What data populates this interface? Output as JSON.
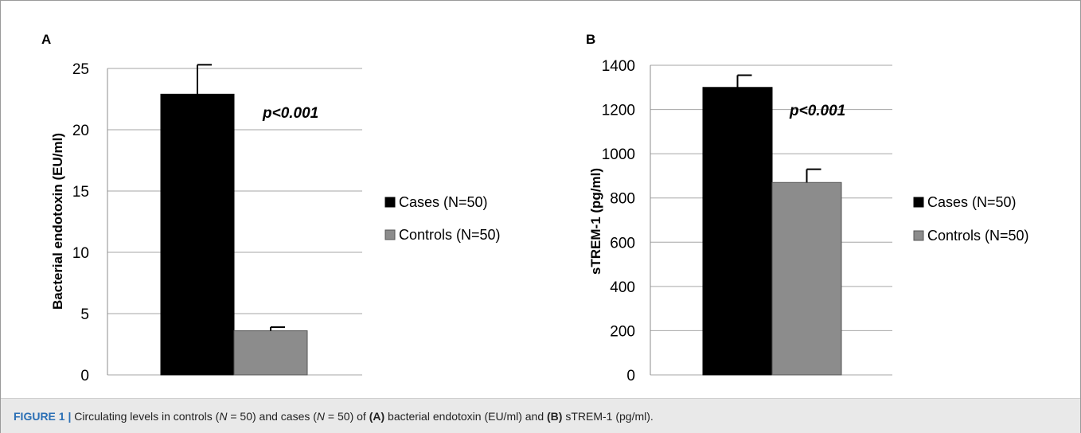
{
  "chart_data": [
    {
      "type": "bar",
      "panel_label": "A",
      "ylabel": "Bacterial endotoxin (EU/ml)",
      "ylim": [
        0,
        25
      ],
      "yticks": [
        0,
        5,
        10,
        15,
        20,
        25
      ],
      "annotation": "p<0.001",
      "grid": true,
      "legend_position": "right",
      "series": [
        {
          "name": "Cases (N=50)",
          "value": 22.9,
          "error": 2.4,
          "color": "#000000"
        },
        {
          "name": "Controls (N=50)",
          "value": 3.6,
          "error": 0.3,
          "color": "#8c8c8c"
        }
      ]
    },
    {
      "type": "bar",
      "panel_label": "B",
      "ylabel": "sTREM-1 (pg/ml)",
      "ylim": [
        0,
        1400
      ],
      "yticks": [
        0,
        200,
        400,
        600,
        800,
        1000,
        1200,
        1400
      ],
      "annotation": "p<0.001",
      "grid": true,
      "legend_position": "right",
      "series": [
        {
          "name": "Cases (N=50)",
          "value": 1300,
          "error": 55,
          "color": "#000000"
        },
        {
          "name": "Controls (N=50)",
          "value": 870,
          "error": 60,
          "color": "#8c8c8c"
        }
      ]
    }
  ],
  "caption": {
    "figure_label": "FIGURE 1 |",
    "part1": " Circulating levels in controls (",
    "n_symbol": "N",
    "part2": " = 50) and cases (",
    "part3": " = 50) of ",
    "ref_a": "(A)",
    "part4": " bacterial endotoxin (EU/ml) and ",
    "ref_b": "(B)",
    "part5": " sTREM-1 (pg/ml)."
  }
}
